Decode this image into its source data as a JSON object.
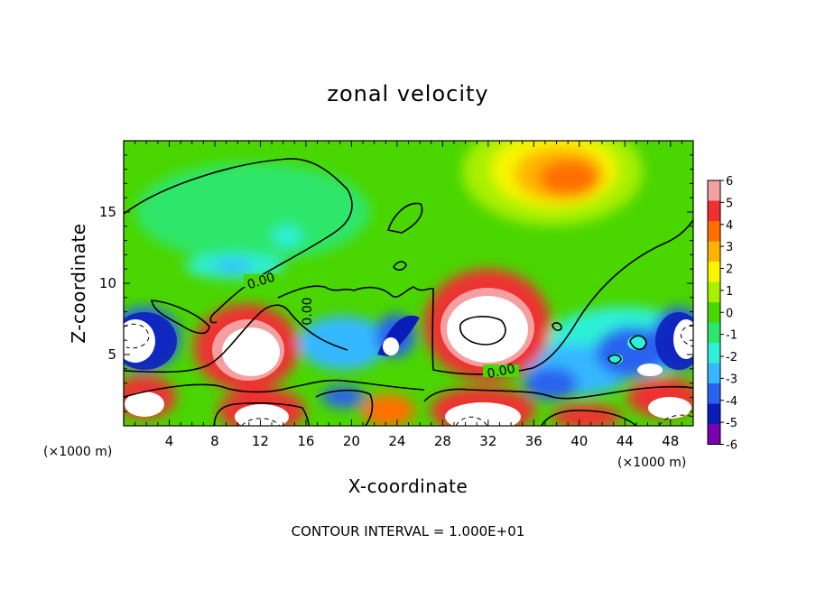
{
  "chart_data": {
    "type": "heatmap",
    "title": "zonal velocity",
    "xlabel": "X-coordinate",
    "ylabel": "Z-coordinate",
    "x_unit": "(×1000 m)",
    "x_unit_right": "(×1000 m)",
    "xlim": [
      0,
      50
    ],
    "ylim": [
      0,
      20
    ],
    "xticks": [
      "4",
      "8",
      "12",
      "16",
      "20",
      "24",
      "28",
      "32",
      "36",
      "40",
      "44",
      "48"
    ],
    "yticks": [
      "5",
      "10",
      "15"
    ],
    "colorbar": {
      "ticks": [
        "6",
        "5",
        "4",
        "3",
        "2",
        "1",
        "0",
        "-1",
        "-2",
        "-3",
        "-4",
        "-5",
        "-6"
      ],
      "colors": [
        "#f4a0a0",
        "#ee3030",
        "#ff6f00",
        "#ffb400",
        "#f6f600",
        "#a8f000",
        "#4ad600",
        "#2ee66a",
        "#2ef0d8",
        "#35b8ff",
        "#2a62f0",
        "#0c1cb8",
        "#7a00b0"
      ]
    },
    "features": [
      {
        "x": 40,
        "z": 17.5,
        "value": 4.5
      },
      {
        "x": 30,
        "z": 6.5,
        "value": 7
      },
      {
        "x": 11,
        "z": 5.5,
        "value": 7
      },
      {
        "x": 2,
        "z": 6,
        "value": -7
      },
      {
        "x": 48,
        "z": 6,
        "value": -7
      },
      {
        "x": 23,
        "z": 6,
        "value": -4
      },
      {
        "x": 44,
        "z": 5,
        "value": -4.5
      },
      {
        "x": 11,
        "z": 10.5,
        "value": -2.5
      },
      {
        "x": 14,
        "z": 13.5,
        "value": -1.5
      },
      {
        "x": 10,
        "z": 1.5,
        "value": 7
      },
      {
        "x": 31,
        "z": 1.5,
        "value": 7
      },
      {
        "x": 2,
        "z": 1.5,
        "value": 6
      }
    ],
    "contour_labels": [
      "0.00",
      "0.00",
      "0.00"
    ]
  },
  "footer": {
    "contour_interval": "CONTOUR INTERVAL = 1.000E+01"
  }
}
